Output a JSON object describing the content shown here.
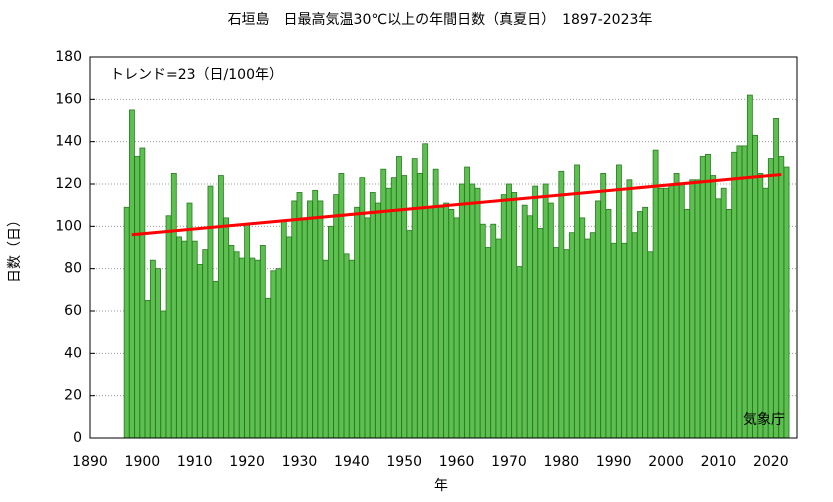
{
  "chart_data": {
    "type": "bar",
    "title": "石垣島　日最高気温30℃以上の年間日数（真夏日）　1897-2023年",
    "xlabel": "年",
    "ylabel": "日数（日）",
    "annotations": [
      "トレンド=23（日/100年）",
      "気象庁"
    ],
    "color": "#5cbf4f",
    "edgecolor": "#2a7a22",
    "x": [
      1897,
      1898,
      1899,
      1900,
      1901,
      1902,
      1903,
      1904,
      1905,
      1906,
      1907,
      1908,
      1909,
      1910,
      1911,
      1912,
      1913,
      1914,
      1915,
      1916,
      1917,
      1918,
      1919,
      1920,
      1921,
      1922,
      1923,
      1924,
      1925,
      1926,
      1927,
      1928,
      1929,
      1930,
      1931,
      1932,
      1933,
      1934,
      1935,
      1936,
      1937,
      1938,
      1939,
      1940,
      1941,
      1942,
      1943,
      1944,
      1945,
      1946,
      1947,
      1948,
      1949,
      1950,
      1951,
      1952,
      1953,
      1954,
      1955,
      1956,
      1957,
      1958,
      1959,
      1960,
      1961,
      1962,
      1963,
      1964,
      1965,
      1966,
      1967,
      1968,
      1969,
      1970,
      1971,
      1972,
      1973,
      1974,
      1975,
      1976,
      1977,
      1978,
      1979,
      1980,
      1981,
      1982,
      1983,
      1984,
      1985,
      1986,
      1987,
      1988,
      1989,
      1990,
      1991,
      1992,
      1993,
      1994,
      1995,
      1996,
      1997,
      1998,
      1999,
      2000,
      2001,
      2002,
      2003,
      2004,
      2005,
      2006,
      2007,
      2008,
      2009,
      2010,
      2011,
      2012,
      2013,
      2014,
      2015,
      2016,
      2017,
      2018,
      2019,
      2020,
      2021,
      2022,
      2023
    ],
    "values": [
      109,
      155,
      133,
      137,
      65,
      84,
      80,
      60,
      105,
      125,
      95,
      93,
      111,
      93,
      82,
      89,
      119,
      74,
      124,
      104,
      91,
      88,
      85,
      101,
      85,
      84,
      91,
      66,
      79,
      80,
      103,
      95,
      112,
      116,
      104,
      112,
      117,
      112,
      84,
      100,
      115,
      125,
      87,
      84,
      109,
      123,
      104,
      116,
      111,
      127,
      118,
      123,
      133,
      124,
      98,
      132,
      125,
      139,
      109,
      127,
      109,
      111,
      108,
      104,
      120,
      128,
      120,
      118,
      101,
      90,
      101,
      94,
      115,
      120,
      116,
      81,
      110,
      105,
      119,
      99,
      120,
      111,
      90,
      126,
      89,
      97,
      129,
      104,
      94,
      97,
      112,
      125,
      108,
      92,
      129,
      92,
      122,
      97,
      107,
      109,
      88,
      136,
      118,
      118,
      120,
      125,
      120,
      108,
      122,
      122,
      133,
      134,
      124,
      113,
      118,
      108,
      135,
      138,
      138,
      162,
      143,
      125,
      118,
      132,
      151,
      133,
      128
    ],
    "trend": {
      "x": [
        1898,
        2022
      ],
      "values": [
        96,
        124.5
      ],
      "color": "#ff0000"
    },
    "xlim": [
      1890,
      2025
    ],
    "ylim": [
      0,
      180
    ],
    "xticks": [
      1890,
      1900,
      1910,
      1920,
      1930,
      1940,
      1950,
      1960,
      1970,
      1980,
      1990,
      2000,
      2010,
      2020
    ],
    "yticks": [
      0,
      20,
      40,
      60,
      80,
      100,
      120,
      140,
      160,
      180
    ],
    "grid": true
  }
}
